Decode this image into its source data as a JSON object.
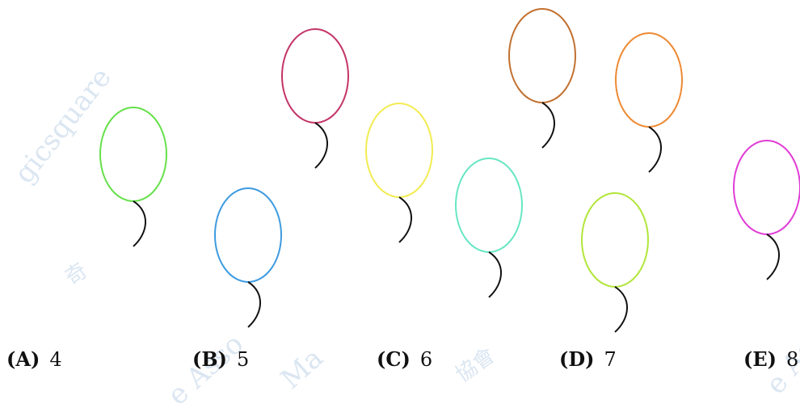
{
  "watermarks": [
    "gicsquare",
    "奇",
    "e Asso",
    "Ma",
    "協會",
    "e As"
  ],
  "balloons": [
    {
      "name": "balloon-green",
      "color": "#66e04a"
    },
    {
      "name": "balloon-blue",
      "color": "#3d9be0"
    },
    {
      "name": "balloon-crimson",
      "color": "#c43468"
    },
    {
      "name": "balloon-yellow",
      "color": "#f2ec52"
    },
    {
      "name": "balloon-aqua",
      "color": "#68e6c4"
    },
    {
      "name": "balloon-brown",
      "color": "#c2702f"
    },
    {
      "name": "balloon-lime",
      "color": "#b2e63a"
    },
    {
      "name": "balloon-orange",
      "color": "#ee8a34"
    },
    {
      "name": "balloon-magenta",
      "color": "#e03cd6"
    }
  ],
  "options": [
    {
      "letter": "(A)",
      "value": "4"
    },
    {
      "letter": "(B)",
      "value": "5"
    },
    {
      "letter": "(C)",
      "value": "6"
    },
    {
      "letter": "(D)",
      "value": "7"
    },
    {
      "letter": "(E)",
      "value": "8"
    }
  ]
}
